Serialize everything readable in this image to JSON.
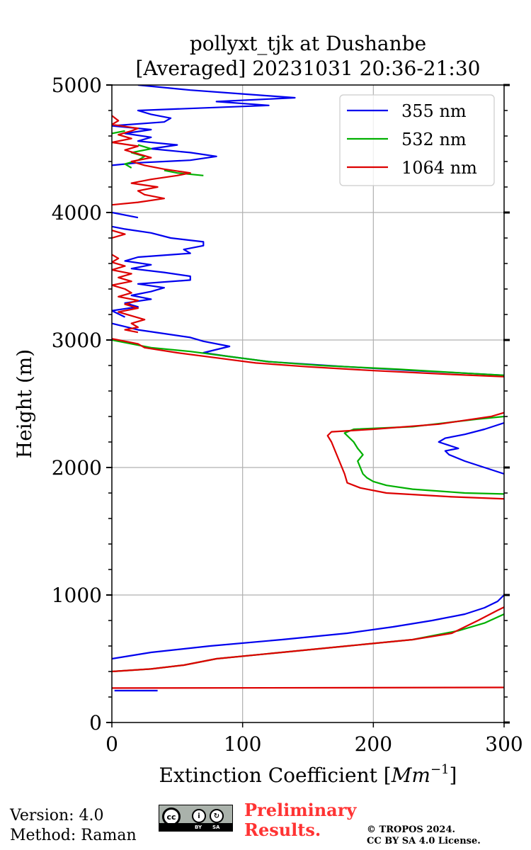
{
  "chart_data": {
    "type": "line",
    "title_line1": "pollyxt_tjk at Dushanbe",
    "title_line2": "[Averaged] 20231031 20:36-21:30",
    "xlabel": "Extinction Coefficient [",
    "xlabel_unit": "Mm",
    "xlabel_exp": "−1",
    "xlabel_end": "]",
    "ylabel": "Height (m)",
    "xlim": [
      0,
      300
    ],
    "ylim": [
      0,
      5000
    ],
    "x_ticks": [
      0,
      100,
      200,
      300
    ],
    "x_tick_labels": [
      "0",
      "100",
      "200",
      "300"
    ],
    "y_ticks": [
      0,
      1000,
      2000,
      3000,
      4000,
      5000
    ],
    "y_tick_labels": [
      "0",
      "1000",
      "2000",
      "3000",
      "4000",
      "5000"
    ],
    "grid": true,
    "legend_position": "top-right",
    "series": [
      {
        "name": "355 nm",
        "color": "#0000ee",
        "points": [
          [
            35,
            250
          ],
          [
            2,
            250
          ],
          null,
          [
            0,
            500
          ],
          [
            30,
            550
          ],
          [
            75,
            600
          ],
          [
            130,
            650
          ],
          [
            180,
            700
          ],
          [
            215,
            750
          ],
          [
            245,
            800
          ],
          [
            270,
            850
          ],
          [
            285,
            900
          ],
          [
            295,
            950
          ],
          [
            300,
            1000
          ],
          [
            305,
            1060
          ],
          null,
          [
            320,
            1950
          ],
          [
            300,
            1950
          ],
          [
            285,
            2000
          ],
          [
            270,
            2050
          ],
          [
            258,
            2100
          ],
          [
            255,
            2130
          ],
          [
            265,
            2150
          ],
          [
            250,
            2200
          ],
          [
            255,
            2230
          ],
          [
            270,
            2260
          ],
          [
            285,
            2300
          ],
          [
            300,
            2350
          ],
          null,
          [
            305,
            2720
          ],
          [
            270,
            2740
          ],
          [
            230,
            2760
          ],
          [
            180,
            2790
          ],
          [
            120,
            2830
          ],
          [
            90,
            2870
          ],
          [
            70,
            2900
          ],
          [
            90,
            2950
          ],
          [
            70,
            2990
          ],
          [
            60,
            3020
          ],
          [
            40,
            3050
          ],
          [
            20,
            3080
          ],
          [
            8,
            3110
          ],
          [
            0,
            3130
          ],
          null,
          [
            10,
            3180
          ],
          [
            0,
            3230
          ],
          [
            20,
            3260
          ],
          [
            10,
            3290
          ],
          [
            30,
            3320
          ],
          [
            15,
            3350
          ],
          [
            30,
            3380
          ],
          [
            40,
            3410
          ],
          [
            20,
            3440
          ],
          [
            60,
            3470
          ],
          [
            60,
            3500
          ],
          [
            40,
            3530
          ],
          [
            15,
            3560
          ],
          [
            30,
            3590
          ],
          [
            10,
            3620
          ],
          [
            20,
            3650
          ],
          [
            60,
            3680
          ],
          [
            55,
            3710
          ],
          [
            70,
            3740
          ],
          [
            70,
            3770
          ],
          [
            45,
            3800
          ],
          [
            30,
            3840
          ],
          [
            10,
            3870
          ],
          [
            0,
            3890
          ],
          null,
          [
            20,
            3960
          ],
          [
            0,
            4000
          ],
          null,
          [
            0,
            4370
          ],
          [
            20,
            4390
          ],
          [
            60,
            4410
          ],
          [
            80,
            4440
          ],
          [
            60,
            4470
          ],
          [
            30,
            4500
          ],
          [
            50,
            4530
          ],
          [
            20,
            4560
          ],
          [
            30,
            4590
          ],
          [
            10,
            4620
          ],
          [
            30,
            4650
          ],
          [
            0,
            4680
          ],
          [
            40,
            4710
          ],
          [
            45,
            4740
          ],
          [
            30,
            4770
          ],
          [
            20,
            4800
          ],
          [
            120,
            4840
          ],
          [
            80,
            4870
          ],
          [
            140,
            4900
          ],
          [
            100,
            4930
          ],
          [
            60,
            4960
          ],
          [
            20,
            5000
          ]
        ]
      },
      {
        "name": "532 nm",
        "color": "#00b000",
        "points": [
          [
            0,
            400
          ],
          [
            30,
            420
          ],
          [
            55,
            450
          ],
          [
            80,
            500
          ],
          [
            130,
            550
          ],
          [
            180,
            600
          ],
          [
            230,
            650
          ],
          [
            265,
            720
          ],
          [
            285,
            780
          ],
          [
            300,
            850
          ],
          [
            305,
            860
          ],
          null,
          [
            310,
            1790
          ],
          [
            270,
            1800
          ],
          [
            230,
            1830
          ],
          [
            210,
            1860
          ],
          [
            200,
            1890
          ],
          [
            195,
            1920
          ],
          [
            192,
            1950
          ],
          [
            190,
            2000
          ],
          [
            188,
            2050
          ],
          [
            192,
            2100
          ],
          [
            188,
            2150
          ],
          [
            185,
            2200
          ],
          [
            182,
            2230
          ],
          [
            178,
            2270
          ],
          [
            185,
            2300
          ],
          [
            230,
            2320
          ],
          [
            280,
            2380
          ],
          [
            300,
            2400
          ],
          null,
          [
            305,
            2720
          ],
          [
            270,
            2740
          ],
          [
            220,
            2770
          ],
          [
            160,
            2800
          ],
          [
            120,
            2830
          ],
          [
            90,
            2870
          ],
          [
            60,
            2910
          ],
          [
            30,
            2940
          ],
          [
            15,
            2970
          ],
          [
            0,
            3000
          ],
          null,
          [
            0,
            4620
          ],
          [
            10,
            4640
          ],
          null,
          [
            15,
            4350
          ],
          [
            10,
            4380
          ],
          [
            20,
            4410
          ],
          [
            25,
            4440
          ],
          [
            15,
            4470
          ],
          [
            30,
            4500
          ],
          [
            20,
            4530
          ],
          null,
          [
            70,
            4290
          ],
          [
            50,
            4310
          ],
          [
            40,
            4330
          ]
        ]
      },
      {
        "name": "1064 nm",
        "color": "#dd0000",
        "points": [
          [
            0,
            270
          ],
          [
            305,
            275
          ],
          null,
          [
            0,
            400
          ],
          [
            30,
            420
          ],
          [
            55,
            450
          ],
          [
            80,
            500
          ],
          [
            130,
            550
          ],
          [
            180,
            600
          ],
          [
            230,
            650
          ],
          [
            260,
            700
          ],
          [
            280,
            800
          ],
          [
            295,
            880
          ],
          [
            305,
            930
          ],
          null,
          [
            310,
            1750
          ],
          [
            260,
            1770
          ],
          [
            210,
            1800
          ],
          [
            190,
            1840
          ],
          [
            180,
            1880
          ],
          [
            178,
            1950
          ],
          [
            176,
            2000
          ],
          [
            174,
            2050
          ],
          [
            172,
            2100
          ],
          [
            170,
            2150
          ],
          [
            168,
            2200
          ],
          [
            165,
            2250
          ],
          [
            168,
            2280
          ],
          [
            200,
            2300
          ],
          [
            250,
            2340
          ],
          [
            290,
            2400
          ],
          [
            300,
            2430
          ],
          null,
          [
            305,
            2710
          ],
          [
            260,
            2730
          ],
          [
            200,
            2760
          ],
          [
            150,
            2790
          ],
          [
            110,
            2820
          ],
          [
            80,
            2860
          ],
          [
            50,
            2900
          ],
          [
            25,
            2940
          ],
          [
            20,
            2970
          ],
          [
            5,
            3000
          ],
          [
            0,
            3010
          ],
          null,
          [
            20,
            3060
          ],
          [
            10,
            3080
          ],
          [
            20,
            3100
          ],
          [
            15,
            3130
          ],
          [
            25,
            3160
          ],
          [
            15,
            3190
          ],
          [
            5,
            3220
          ],
          [
            20,
            3250
          ],
          [
            10,
            3280
          ],
          [
            20,
            3310
          ],
          [
            5,
            3340
          ],
          [
            15,
            3370
          ],
          [
            10,
            3400
          ],
          [
            0,
            3430
          ],
          [
            15,
            3460
          ],
          [
            5,
            3490
          ],
          [
            15,
            3520
          ],
          [
            0,
            3550
          ],
          [
            10,
            3580
          ],
          [
            0,
            3610
          ],
          [
            5,
            3640
          ],
          [
            0,
            3670
          ],
          null,
          [
            0,
            3800
          ],
          [
            10,
            3830
          ],
          [
            0,
            3860
          ],
          null,
          [
            0,
            4060
          ],
          [
            20,
            4080
          ],
          [
            40,
            4110
          ],
          [
            25,
            4140
          ],
          [
            20,
            4170
          ],
          [
            35,
            4200
          ],
          [
            15,
            4230
          ],
          [
            30,
            4260
          ],
          [
            50,
            4290
          ],
          [
            60,
            4310
          ],
          [
            40,
            4340
          ],
          [
            25,
            4370
          ],
          [
            15,
            4400
          ],
          [
            30,
            4430
          ],
          [
            20,
            4460
          ],
          [
            10,
            4490
          ],
          [
            20,
            4520
          ],
          [
            0,
            4550
          ],
          [
            15,
            4580
          ],
          [
            5,
            4610
          ],
          [
            15,
            4640
          ],
          [
            20,
            4660
          ],
          [
            0,
            4690
          ],
          [
            5,
            4720
          ],
          [
            0,
            4760
          ]
        ]
      }
    ]
  },
  "footer": {
    "version": "Version: 4.0",
    "method": "Method: Raman",
    "preliminary_line1": "Preliminary",
    "preliminary_line2": "Results.",
    "copyright_line1": "© TROPOS 2024.",
    "copyright_line2": "CC BY SA 4.0 License.",
    "license_badge": {
      "icon": "cc-by-sa-icon",
      "cc_text": "cc",
      "by_text": "BY",
      "sa_text": "SA"
    }
  }
}
